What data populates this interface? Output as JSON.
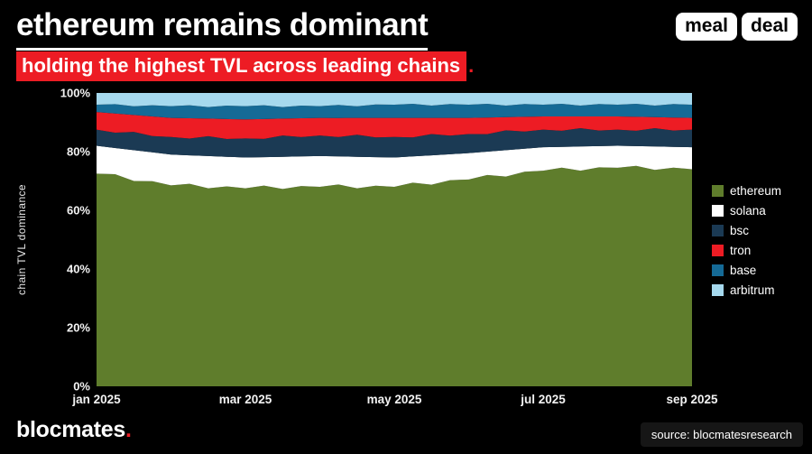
{
  "header": {
    "title": "ethereum remains dominant",
    "subtitle": "holding the highest TVL across leading chains",
    "period": ".",
    "logo_word_1": "meal",
    "logo_word_2": "deal",
    "accent_color": "#ed1c24"
  },
  "chart_data": {
    "type": "area",
    "stacked": true,
    "percent_normalized": true,
    "title": "",
    "xlabel": "",
    "ylabel": "chain TVL dominance",
    "ylim": [
      0,
      100
    ],
    "grid": false,
    "legend_position": "right",
    "y_ticks": [
      "100%",
      "80%",
      "60%",
      "40%",
      "20%",
      "0%"
    ],
    "x_ticks": [
      "jan 2025",
      "mar 2025",
      "may 2025",
      "jul 2025",
      "sep 2025"
    ],
    "x_range": [
      "jan 2025",
      "sep 2025"
    ],
    "series": [
      {
        "name": "ethereum",
        "color": "#5f7d2c",
        "values": [
          72.5,
          72.3,
          70.0,
          69.9,
          68.5,
          69.05,
          67.5,
          68.15,
          67.5,
          68.43,
          67.25,
          68.28,
          68.0,
          68.8,
          67.5,
          68.4,
          68.0,
          69.43,
          68.75,
          70.28,
          70.5,
          72.05,
          71.5,
          73.15,
          73.5,
          74.55,
          73.5,
          74.65,
          74.5,
          75.18,
          73.75,
          74.53,
          74.0
        ]
      },
      {
        "name": "solana",
        "color": "#ffffff",
        "values": [
          9.5,
          8.95,
          10.5,
          9.85,
          10.5,
          9.7,
          11.0,
          10.1,
          10.5,
          9.7,
          11.0,
          10.1,
          10.5,
          9.58,
          10.75,
          9.73,
          10.0,
          8.95,
          10.0,
          8.85,
          9.0,
          7.95,
          9.0,
          7.85,
          8.0,
          7.08,
          8.25,
          7.22,
          7.5,
          6.7,
          8.0,
          7.1,
          7.5
        ]
      },
      {
        "name": "bsc",
        "color": "#1b3a54",
        "values": [
          5.5,
          5.23,
          6.25,
          5.58,
          6.0,
          5.73,
          6.75,
          6.08,
          6.5,
          6.23,
          7.25,
          6.58,
          7.0,
          6.6,
          7.5,
          6.7,
          7.0,
          6.48,
          7.25,
          6.33,
          6.5,
          5.98,
          6.75,
          5.83,
          6.0,
          5.48,
          6.25,
          5.33,
          5.5,
          5.23,
          6.25,
          5.58,
          6.0
        ]
      },
      {
        "name": "tron",
        "color": "#ed1c24",
        "values": [
          6.0,
          6.53,
          5.75,
          6.68,
          6.5,
          6.9,
          6.0,
          6.8,
          6.5,
          6.78,
          5.75,
          6.42,
          6.0,
          6.53,
          5.75,
          6.68,
          6.5,
          6.65,
          5.5,
          6.05,
          5.5,
          5.65,
          4.5,
          5.05,
          4.5,
          4.9,
          4.0,
          4.8,
          4.5,
          4.78,
          3.75,
          4.42,
          4.0
        ]
      },
      {
        "name": "base",
        "color": "#156a96",
        "values": [
          2.5,
          3.18,
          2.95,
          3.82,
          4.0,
          4.43,
          3.95,
          4.58,
          4.5,
          4.68,
          3.95,
          4.32,
          4.0,
          4.43,
          3.95,
          4.58,
          4.5,
          4.8,
          4.2,
          4.7,
          4.5,
          4.68,
          3.95,
          4.32,
          4.0,
          4.3,
          3.7,
          4.2,
          4.0,
          4.42,
          3.95,
          4.58,
          4.5
        ]
      },
      {
        "name": "arbitrum",
        "color": "#a6d9ee",
        "values": [
          4.0,
          3.82,
          4.55,
          4.18,
          4.5,
          4.2,
          4.8,
          4.3,
          4.5,
          4.2,
          4.8,
          4.3,
          4.5,
          4.08,
          4.55,
          3.92,
          4.0,
          3.7,
          4.3,
          3.8,
          4.0,
          3.7,
          4.3,
          3.8,
          4.0,
          3.7,
          4.3,
          3.8,
          4.0,
          3.7,
          4.3,
          3.8,
          4.0
        ]
      }
    ]
  },
  "footer": {
    "brand": "blocmates",
    "brand_period": ".",
    "source": "source: blocmatesresearch"
  }
}
